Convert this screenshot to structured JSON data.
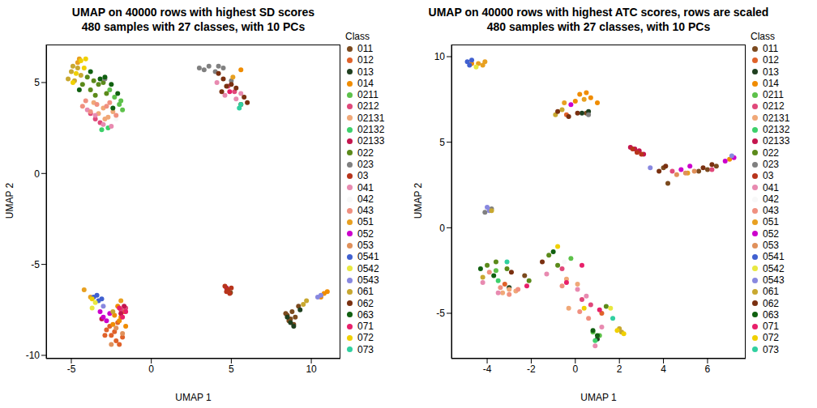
{
  "chart_data": [
    {
      "type": "scatter",
      "title": "UMAP on 40000 rows with highest SD scores\n480 samples with 27 classes, with 10 PCs",
      "x_label": "UMAP 1",
      "y_label": "UMAP 2",
      "legend": "right",
      "legend_title": "Class",
      "xlim": [
        -6.57,
        11.82
      ],
      "ylim": [
        -10.18,
        7.09
      ],
      "xticks": [
        -5,
        0,
        5,
        10
      ],
      "yticks": [
        -10,
        -5,
        0,
        5
      ],
      "series": [
        {
          "name": "011",
          "color": "#7b4a1e",
          "x": [
            8.5,
            8.7,
            8.9,
            8.6,
            8.8,
            9.0,
            8.4,
            9.2,
            4.95
          ],
          "y": [
            -7.8,
            -8.0,
            -8.3,
            -8.1,
            -7.6,
            -7.9,
            -7.7,
            -7.3,
            -6.55
          ]
        },
        {
          "name": "012",
          "color": "#e0622a",
          "x": [
            -2.8,
            -2.5,
            -2.2,
            -2.0,
            -1.8,
            -2.6,
            -2.3,
            -2.9,
            -2.1
          ],
          "y": [
            -8.6,
            -8.9,
            -9.2,
            -9.4,
            -9.0,
            -8.4,
            -8.7,
            -8.9,
            -8.2
          ]
        },
        {
          "name": "013",
          "color": "#1f3f1f",
          "x": [
            8.7,
            8.9,
            9.3,
            8.5
          ],
          "y": [
            -8.2,
            -8.4,
            -7.5,
            -7.9
          ]
        },
        {
          "name": "014",
          "color": "#f08c00",
          "x": [
            -2.3,
            -2.0,
            -1.7,
            -1.9,
            -2.4,
            -1.6,
            -2.1,
            10.8,
            10.6,
            11.0,
            5.6
          ],
          "y": [
            -7.8,
            -8.1,
            -7.6,
            -7.9,
            -8.3,
            -8.4,
            -7.3,
            -6.6,
            -6.8,
            -6.5,
            5.7
          ]
        },
        {
          "name": "0211",
          "color": "#5dc14a",
          "x": [
            -2.0,
            -1.8,
            -2.3,
            -1.9,
            -2.6
          ],
          "y": [
            3.8,
            3.5,
            4.2,
            4.0,
            4.6
          ]
        },
        {
          "name": "0212",
          "color": "#e0487a",
          "x": [
            -3.8,
            -3.5,
            -3.2,
            -1.9,
            -1.6,
            4.8,
            5.2
          ],
          "y": [
            3.3,
            3.0,
            2.8,
            -7.5,
            -7.4,
            4.8,
            4.5
          ]
        },
        {
          "name": "02131",
          "color": "#f0a878",
          "x": [
            -3.3,
            -3.0,
            -2.7,
            -2.4,
            -3.6,
            -2.9
          ],
          "y": [
            3.3,
            3.6,
            3.1,
            3.4,
            3.9,
            3.0
          ]
        },
        {
          "name": "02132",
          "color": "#3dd06a",
          "x": [
            -3.1,
            -2.7
          ],
          "y": [
            2.4,
            2.5
          ]
        },
        {
          "name": "02133",
          "color": "#c4154e",
          "x": [
            -1.7,
            -1.9,
            -3.1,
            4.7
          ],
          "y": [
            -7.3,
            -7.7,
            -8.0,
            -6.3
          ]
        },
        {
          "name": "022",
          "color": "#5b8a1a",
          "x": [
            -4.0,
            -3.6,
            -3.3,
            -3.8,
            -3.0,
            -2.8,
            -4.3,
            -3.5
          ],
          "y": [
            5.3,
            5.1,
            4.9,
            4.6,
            5.0,
            4.4,
            4.9,
            4.3
          ]
        },
        {
          "name": "023",
          "color": "#808080",
          "x": [
            -2.9,
            3.0,
            3.3,
            3.6,
            4.0,
            4.5,
            4.2,
            5.0
          ],
          "y": [
            5.2,
            5.8,
            5.7,
            5.9,
            5.6,
            5.8,
            5.9,
            5.1
          ]
        },
        {
          "name": "03",
          "color": "#b8341b",
          "x": [
            4.6,
            4.8,
            4.9,
            4.7,
            5.0
          ],
          "y": [
            -6.2,
            -6.4,
            -6.6,
            -6.5,
            -6.3
          ]
        },
        {
          "name": "041",
          "color": "#e88ab0",
          "x": [
            -4.0,
            -3.5,
            -3.0,
            -2.5,
            4.1,
            4.6,
            5.3,
            5.6
          ],
          "y": [
            3.5,
            3.2,
            2.7,
            2.6,
            5.0,
            4.3,
            4.1,
            4.4
          ]
        },
        {
          "name": "042",
          "color": "#f8f8f8",
          "x": [
            -2.2
          ],
          "y": [
            3.0
          ]
        },
        {
          "name": "043",
          "color": "#f09080",
          "x": [
            -4.3,
            -4.1,
            -3.8,
            -3.4,
            -2.6,
            -2.2,
            -2.8
          ],
          "y": [
            3.7,
            4.0,
            3.4,
            3.8,
            3.9,
            3.2,
            3.7
          ]
        },
        {
          "name": "051",
          "color": "#e8a020",
          "x": [
            -4.6,
            -4.5,
            -4.2,
            -3.8,
            5.1,
            -1.9
          ],
          "y": [
            6.1,
            6.3,
            -6.4,
            -6.8,
            5.3,
            -7.0
          ]
        },
        {
          "name": "052",
          "color": "#cc00cc",
          "x": [
            -3.2,
            -3.0,
            -2.8,
            -2.6
          ],
          "y": [
            -7.6,
            -7.9,
            -8.1,
            -7.7
          ]
        },
        {
          "name": "053",
          "color": "#e0905a",
          "x": [
            -2.2,
            -1.8,
            -2.5
          ],
          "y": [
            -8.5,
            -8.8,
            -9.4
          ]
        },
        {
          "name": "0541",
          "color": "#4060d0",
          "x": [
            -3.6,
            -3.4,
            -3.3,
            -3.1
          ],
          "y": [
            -6.8,
            -6.7,
            -7.0,
            -6.9
          ]
        },
        {
          "name": "0542",
          "color": "#e8e840",
          "x": [
            -3.5,
            -3.7
          ],
          "y": [
            -7.1,
            -7.4
          ]
        },
        {
          "name": "0543",
          "color": "#8888e0",
          "x": [
            -3.0,
            10.4,
            10.6
          ],
          "y": [
            -7.3,
            -6.8,
            -6.7
          ]
        },
        {
          "name": "061",
          "color": "#c8a830",
          "x": [
            -5.0,
            -5.2,
            -4.9,
            -4.6,
            -4.4,
            -4.8,
            9.5,
            9.7,
            -2.4
          ],
          "y": [
            5.6,
            5.2,
            5.9,
            5.8,
            5.4,
            5.1,
            -7.2,
            -7.0,
            -7.6
          ]
        },
        {
          "name": "062",
          "color": "#7a3010",
          "x": [
            4.2,
            4.5,
            4.7,
            5.0,
            5.3,
            5.8,
            6.0,
            5.6,
            4.4
          ],
          "y": [
            5.5,
            5.2,
            4.8,
            4.9,
            4.7,
            4.2,
            3.9,
            3.8,
            4.5
          ]
        },
        {
          "name": "063",
          "color": "#106010",
          "x": [
            -3.8,
            -3.2,
            -2.9,
            -2.5,
            -2.1,
            -4.5,
            -2.4
          ],
          "y": [
            5.6,
            5.2,
            5.3,
            4.9,
            4.4,
            4.6,
            3.6
          ]
        },
        {
          "name": "071",
          "color": "#e8206a",
          "x": [
            -1.6,
            -1.8,
            4.9,
            -2.0
          ],
          "y": [
            -7.6,
            -7.9,
            4.5,
            -7.4
          ]
        },
        {
          "name": "072",
          "color": "#f0d000",
          "x": [
            -4.4,
            -4.2,
            -4.7,
            -4.9,
            -4.1,
            -3.7
          ],
          "y": [
            6.2,
            5.8,
            5.5,
            5.0,
            6.3,
            -6.9
          ]
        },
        {
          "name": "073",
          "color": "#30d0a0",
          "x": [
            5.5,
            5.6
          ],
          "y": [
            3.6,
            3.8
          ]
        }
      ]
    },
    {
      "type": "scatter",
      "title": "UMAP on 40000 rows with highest ATC scores, rows are scaled\n480 samples with 27 classes, with 10 PCs",
      "x_label": "UMAP 1",
      "y_label": "UMAP 2",
      "legend": "right",
      "legend_title": "Class",
      "xlim": [
        -5.62,
        7.73
      ],
      "ylim": [
        -7.65,
        10.71
      ],
      "xticks": [
        -4,
        -2,
        0,
        2,
        4,
        6
      ],
      "yticks": [
        -5,
        0,
        5,
        10
      ],
      "series": [
        {
          "name": "011",
          "color": "#7b4a1e",
          "x": [
            5.6,
            6.0,
            6.4,
            4.2,
            4.0,
            -2.3,
            0.5
          ],
          "y": [
            3.3,
            3.4,
            3.6,
            2.6,
            3.5,
            -2.8,
            6.7
          ]
        },
        {
          "name": "012",
          "color": "#e0622a",
          "x": [
            -0.4,
            -3.2,
            1.2
          ],
          "y": [
            6.6,
            -3.3,
            -5.0
          ]
        },
        {
          "name": "013",
          "color": "#1f3f1f",
          "x": [
            0.3,
            0.6,
            -3.0,
            1.0
          ],
          "y": [
            6.7,
            6.8,
            -3.5,
            -6.5
          ]
        },
        {
          "name": "014",
          "color": "#f08c00",
          "x": [
            0.0,
            0.2,
            0.5,
            0.7,
            1.0,
            -4.7,
            7.0
          ],
          "y": [
            7.4,
            7.8,
            7.9,
            7.6,
            7.3,
            9.6,
            4.0
          ]
        },
        {
          "name": "0211",
          "color": "#5dc14a",
          "x": [
            0.8,
            1.1,
            -0.2,
            -3.6
          ],
          "y": [
            -6.1,
            -6.3,
            -1.8,
            -2.5
          ]
        },
        {
          "name": "0212",
          "color": "#e0487a",
          "x": [
            -0.6,
            0.3,
            0.7,
            6.2,
            4.4
          ],
          "y": [
            -2.4,
            -4.2,
            -4.5,
            3.4,
            3.3
          ]
        },
        {
          "name": "02131",
          "color": "#f0a878",
          "x": [
            -3.3,
            -3.0,
            -2.7,
            -0.4,
            0.1,
            -0.3
          ],
          "y": [
            -3.8,
            -3.6,
            -3.7,
            -3.0,
            -3.3,
            -4.7
          ]
        },
        {
          "name": "02132",
          "color": "#3dd06a",
          "x": [
            0.9,
            -3.5
          ],
          "y": [
            -6.6,
            -3.1
          ]
        },
        {
          "name": "02133",
          "color": "#c4154e",
          "x": [
            2.5,
            2.7,
            2.9,
            3.1
          ],
          "y": [
            4.7,
            4.6,
            4.5,
            4.3
          ]
        },
        {
          "name": "022",
          "color": "#5b8a1a",
          "x": [
            -4.0,
            -3.6,
            -3.1,
            -1.2,
            -0.8,
            1.4,
            -2.1
          ],
          "y": [
            -2.2,
            -2.0,
            -2.4,
            -1.6,
            -2.2,
            -4.6,
            -3.1
          ]
        },
        {
          "name": "023",
          "color": "#808080",
          "x": [
            -3.8,
            -4.1,
            0.6
          ],
          "y": [
            1.1,
            0.9,
            6.6
          ]
        },
        {
          "name": "03",
          "color": "#b8341b",
          "x": [
            2.6,
            2.8,
            3.0
          ],
          "y": [
            4.6,
            4.4,
            4.3
          ]
        },
        {
          "name": "041",
          "color": "#e88ab0",
          "x": [
            -4.2,
            -3.5,
            0.5,
            0.9,
            1.2,
            0.1,
            -1.3
          ],
          "y": [
            -3.2,
            -3.8,
            -4.0,
            -6.9,
            -5.8,
            -3.6,
            -2.7
          ]
        },
        {
          "name": "042",
          "color": "#f8f8f8",
          "x": [
            -0.5
          ],
          "y": [
            -2.0
          ]
        },
        {
          "name": "043",
          "color": "#f09080",
          "x": [
            -3.9,
            -3.4,
            -3.0,
            -2.6,
            0.2,
            -0.6,
            0.6
          ],
          "y": [
            -2.6,
            -3.5,
            -3.9,
            -3.6,
            -4.9,
            -3.4,
            -5.3
          ]
        },
        {
          "name": "051",
          "color": "#e8a020",
          "x": [
            -4.4,
            -4.2,
            -4.1,
            0.4,
            -0.5,
            5.1
          ],
          "y": [
            9.6,
            9.5,
            9.7,
            7.5,
            7.3,
            3.2
          ]
        },
        {
          "name": "052",
          "color": "#cc00cc",
          "x": [
            4.8,
            5.2,
            6.8,
            7.2,
            -0.2
          ],
          "y": [
            3.4,
            3.6,
            3.9,
            4.1,
            7.2
          ]
        },
        {
          "name": "053",
          "color": "#e0905a",
          "x": [
            5.0,
            5.4,
            4.6
          ],
          "y": [
            3.2,
            3.3,
            3.1
          ]
        },
        {
          "name": "0541",
          "color": "#4060d0",
          "x": [
            -4.9,
            -4.7,
            -4.8
          ],
          "y": [
            9.7,
            9.8,
            9.5
          ]
        },
        {
          "name": "0542",
          "color": "#e8e840",
          "x": [
            -4.5,
            1.6
          ],
          "y": [
            9.4,
            -4.7
          ]
        },
        {
          "name": "0543",
          "color": "#8888e0",
          "x": [
            -4.0,
            -3.9,
            3.4,
            7.1
          ],
          "y": [
            1.2,
            1.0,
            3.5,
            4.2
          ]
        },
        {
          "name": "061",
          "color": "#c8a830",
          "x": [
            -0.9,
            -0.6,
            2.0,
            2.1,
            -4.2,
            -3.8
          ],
          "y": [
            6.6,
            6.9,
            -5.9,
            -6.1,
            -2.9,
            1.0
          ]
        },
        {
          "name": "062",
          "color": "#7a3010",
          "x": [
            -0.8,
            -0.3,
            0.1,
            3.8,
            4.1,
            5.8,
            6.2,
            -2.9,
            -1.5
          ],
          "y": [
            6.8,
            6.5,
            6.7,
            3.3,
            3.6,
            3.5,
            3.7,
            -2.6,
            -2.0
          ]
        },
        {
          "name": "063",
          "color": "#106010",
          "x": [
            -4.3,
            -3.7,
            1.0,
            0.8,
            -1.0
          ],
          "y": [
            -2.4,
            -2.8,
            -6.3,
            -6.0,
            -1.4
          ]
        },
        {
          "name": "071",
          "color": "#e8206a",
          "x": [
            -0.4,
            1.1,
            0.3,
            -2.2
          ],
          "y": [
            -3.2,
            -4.8,
            -2.2,
            -3.4
          ]
        },
        {
          "name": "072",
          "color": "#f0d000",
          "x": [
            1.9,
            2.2,
            -0.8,
            0.4
          ],
          "y": [
            -6.0,
            -6.2,
            -1.1,
            -4.7
          ]
        },
        {
          "name": "073",
          "color": "#30d0a0",
          "x": [
            -3.1,
            1.7
          ],
          "y": [
            -2.0,
            -5.3
          ]
        }
      ]
    }
  ]
}
